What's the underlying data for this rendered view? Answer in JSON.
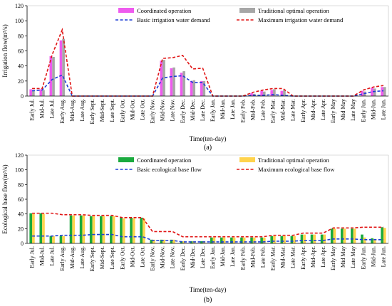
{
  "chart_data": [
    {
      "type": "bar",
      "panel_label": "(a)",
      "ylabel": "Irrigation flow(m³/s)",
      "xlabel": "Time(ten-day)",
      "ylim": [
        0,
        120
      ],
      "yticks": [
        0,
        20,
        40,
        60,
        80,
        100,
        120
      ],
      "legend_placement": "top",
      "categories": [
        "Early Jul.",
        "Mid-Jul.",
        "Late Jul.",
        "Early Aug.",
        "Mid-Aug.",
        "Late Aug.",
        "Early Sept.",
        "Mid-Sept.",
        "Late Sept.",
        "Early Oct.",
        "Mid-Oct.",
        "Late Oct.",
        "Early Nov.",
        "Mid-Nov.",
        "Late Nov.",
        "Early Dec.",
        "Mid-Dec.",
        "Late Dec.",
        "Early Jan.",
        "Mid-Jan.",
        "Late Jan.",
        "Early Feb.",
        "Mid-Feb.",
        "Late Feb.",
        "Early Mar.",
        "Mid-Mar.",
        "Late Mar.",
        "Early Apr.",
        "Mid-Apr.",
        "Late Apr.",
        "Early May",
        "Mid May",
        "Late May",
        "Early Jun.",
        "Mid-Jun.",
        "Late Jun."
      ],
      "series": [
        {
          "name": "Coordinated operation",
          "kind": "bar",
          "color": "#ee5bee",
          "values": [
            9,
            9,
            53,
            74,
            0,
            0,
            0,
            0,
            0,
            0,
            0,
            0,
            0,
            47,
            37,
            31,
            20,
            20,
            0,
            0,
            0,
            0,
            4,
            7,
            8,
            7,
            0,
            0,
            0,
            0,
            0,
            0,
            0,
            7,
            11,
            12
          ]
        },
        {
          "name": "Traditional optimal operation",
          "kind": "bar",
          "color": "#a6a6a6",
          "values": [
            8,
            8,
            52,
            76,
            0,
            0,
            0,
            0,
            0,
            0,
            0,
            0,
            0,
            48,
            38,
            33,
            21,
            20,
            0,
            0,
            0,
            0,
            3,
            6,
            9,
            8,
            0,
            0,
            0,
            0,
            0,
            0,
            0,
            6,
            10,
            12
          ]
        },
        {
          "name": "Basic irrigation water demand",
          "kind": "line",
          "dash": "dashed",
          "color": "#1f3fd6",
          "values": [
            7,
            8,
            22,
            28,
            0,
            0,
            0,
            0,
            0,
            0,
            0,
            0,
            0,
            24,
            26,
            27,
            18,
            18,
            0,
            0,
            0,
            0,
            1,
            1,
            2,
            1,
            0,
            0,
            0,
            0,
            0,
            0,
            0,
            3,
            6,
            7
          ]
        },
        {
          "name": "Maximum irrigation water demand",
          "kind": "line",
          "dash": "dashed",
          "color": "#e01515",
          "values": [
            10,
            10,
            55,
            88,
            0,
            0,
            0,
            0,
            0,
            0,
            0,
            0,
            0,
            50,
            51,
            54,
            36,
            37,
            0,
            0,
            0,
            0,
            5,
            8,
            10,
            10,
            0,
            0,
            0,
            0,
            0,
            0,
            0,
            8,
            12,
            14
          ]
        }
      ]
    },
    {
      "type": "bar",
      "panel_label": "(b)",
      "ylabel": "Ecological base flow(m³/s)",
      "xlabel": "Time(ten-day)",
      "ylim": [
        0,
        120
      ],
      "yticks": [
        0,
        20,
        40,
        60,
        80,
        100,
        120
      ],
      "legend_placement": "top",
      "categories": [
        "Early Jul.",
        "Mid-Jul.",
        "Late Jul.",
        "Early Aug.",
        "Mid-Aug.",
        "Late Aug.",
        "Early Sept.",
        "Mid-Sept.",
        "Late Sept.",
        "Early Oct.",
        "Mid-Oct.",
        "Late Oct.",
        "Early Nov.",
        "Mid-Nov.",
        "Late Nov.",
        "Early Dec.",
        "Mid-Dec.",
        "Late Dec.",
        "Early Jan.",
        "Mid-Jan.",
        "Late Jan.",
        "Early Feb.",
        "Mid-Feb.",
        "Late Feb.",
        "Early Mar.",
        "Mid-Mar.",
        "Late Mar.",
        "Early Apr.",
        "Mid-Apr.",
        "Late Apr.",
        "Early May",
        "Mid May",
        "Late May",
        "Early Jun.",
        "Mid-Jun.",
        "Late Jun."
      ],
      "series": [
        {
          "name": "Coordinated operation",
          "kind": "bar",
          "color": "#1aaa3e",
          "values": [
            41,
            41,
            10,
            10,
            38,
            38,
            37,
            37,
            37,
            35,
            35,
            35,
            5,
            5,
            5,
            3,
            3,
            3,
            8,
            8,
            8,
            8,
            8,
            8,
            10,
            10,
            10,
            12,
            12,
            12,
            20,
            20,
            20,
            12,
            7,
            22
          ]
        },
        {
          "name": "Traditional optimal operation",
          "kind": "bar",
          "color": "#ffd34d",
          "values": [
            40,
            40,
            10,
            10,
            38,
            38,
            37,
            37,
            37,
            34,
            34,
            34,
            5,
            5,
            5,
            3,
            3,
            3,
            8,
            8,
            8,
            8,
            8,
            8,
            10,
            10,
            10,
            12,
            12,
            12,
            20,
            20,
            20,
            8,
            6,
            21
          ]
        },
        {
          "name": "Basic ecological base flow",
          "kind": "line",
          "dash": "dashed",
          "color": "#1f3fd6",
          "values": [
            10,
            10,
            10,
            11,
            11,
            11,
            12,
            12,
            12,
            9,
            9,
            9,
            4,
            4,
            4,
            2,
            2,
            2,
            2,
            2,
            2,
            2,
            2,
            2,
            3,
            3,
            3,
            4,
            4,
            4,
            6,
            6,
            6,
            5,
            5,
            5
          ]
        },
        {
          "name": "Maximum ecological base flow",
          "kind": "line",
          "dash": "dashed",
          "color": "#e01515",
          "values": [
            41,
            41,
            41,
            39,
            39,
            39,
            38,
            38,
            38,
            35,
            35,
            35,
            16,
            16,
            16,
            9,
            9,
            9,
            9,
            9,
            9,
            9,
            9,
            9,
            11,
            11,
            11,
            14,
            14,
            14,
            21,
            21,
            21,
            22,
            22,
            22
          ]
        }
      ]
    }
  ]
}
